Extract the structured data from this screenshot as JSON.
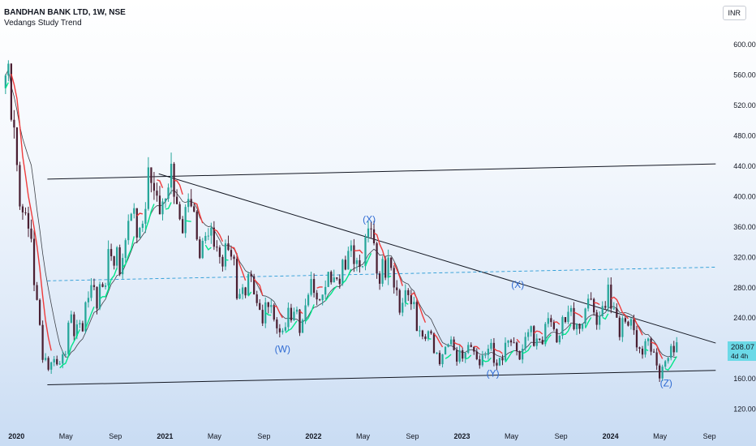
{
  "header": {
    "title": "BANDHAN BANK LTD, 1W, NSE",
    "indicator": "Vedangs Study Trend",
    "currency": "INR"
  },
  "price_tag": {
    "price": "208.07",
    "countdown": "4d 4h"
  },
  "colors": {
    "up": "#26a69a",
    "down": "#4a1f32",
    "trend_red": "#ef3b3b",
    "trend_green": "#00e68a",
    "avg_line": "#3d4148",
    "dashed_line": "#2a9bd6",
    "wave_label": "#2f6bd3"
  },
  "chart_data": {
    "type": "candlestick",
    "x_ticks": [
      "2020",
      "May",
      "Sep",
      "2021",
      "May",
      "Sep",
      "2022",
      "May",
      "Sep",
      "2023",
      "May",
      "Sep",
      "2024",
      "May",
      "Sep"
    ],
    "y_ticks": [
      600.0,
      560.0,
      520.0,
      480.0,
      440.0,
      400.0,
      360.0,
      320.0,
      280.0,
      240.0,
      200.0,
      160.0,
      120.0
    ],
    "ylim": [
      112,
      612
    ],
    "annotations": [
      "(X)",
      "(W)",
      "(X)",
      "(Y)",
      "(Z)"
    ],
    "key_points": [
      {
        "date": "2020-01",
        "price": 560
      },
      {
        "date": "2020-03",
        "price": 165
      },
      {
        "date": "2020-12",
        "price": 420
      },
      {
        "date": "2021-10",
        "price": 225
      },
      {
        "date": "2022-05",
        "price": 345
      },
      {
        "date": "2022-10",
        "price": 205
      },
      {
        "date": "2023-03",
        "price": 185
      },
      {
        "date": "2023-12",
        "price": 260
      },
      {
        "date": "2024-05",
        "price": 175
      },
      {
        "date": "2024-06",
        "price": 208.07
      }
    ],
    "trendlines": [
      {
        "from": {
          "date": "2020-03",
          "price": 152
        },
        "to": {
          "date": "2024-09",
          "price": 171
        }
      },
      {
        "from": {
          "date": "2020-03",
          "price": 423
        },
        "to": {
          "date": "2024-09",
          "price": 443
        }
      },
      {
        "from": {
          "date": "2020-12",
          "price": 430
        },
        "to": {
          "date": "2024-09",
          "price": 207
        }
      }
    ],
    "reference_line": {
      "style": "dashed",
      "from": {
        "date": "2020-03",
        "price": 289
      },
      "to": {
        "date": "2024-09",
        "price": 307
      }
    },
    "last_price": 208.07
  }
}
